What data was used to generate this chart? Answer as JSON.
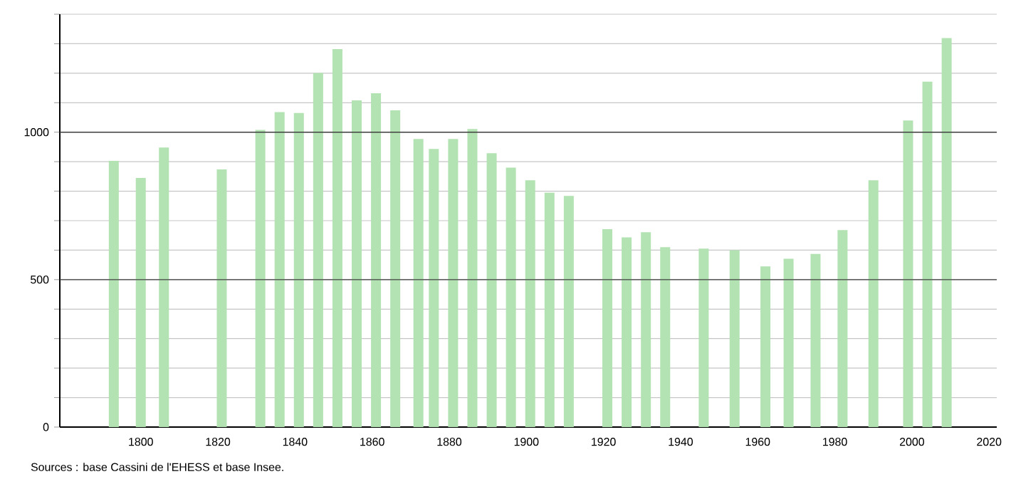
{
  "chart_data": {
    "type": "bar",
    "x": [
      1793,
      1800,
      1806,
      1821,
      1831,
      1836,
      1841,
      1846,
      1851,
      1856,
      1861,
      1866,
      1872,
      1876,
      1881,
      1886,
      1891,
      1896,
      1901,
      1906,
      1911,
      1921,
      1926,
      1931,
      1936,
      1946,
      1954,
      1962,
      1968,
      1975,
      1982,
      1990,
      1999,
      2004,
      2009
    ],
    "values": [
      903,
      845,
      948,
      874,
      1008,
      1068,
      1065,
      1201,
      1282,
      1108,
      1132,
      1074,
      977,
      943,
      977,
      1011,
      929,
      880,
      837,
      795,
      784,
      671,
      643,
      661,
      610,
      605,
      600,
      545,
      571,
      587,
      668,
      837,
      1040,
      1171,
      1319
    ],
    "color": "#b3e2b3",
    "xlim": [
      1779,
      2022
    ],
    "xticks": [
      1800,
      1820,
      1840,
      1860,
      1880,
      1900,
      1920,
      1940,
      1960,
      1980,
      2000,
      2020
    ],
    "ylim": [
      0,
      1400
    ],
    "yticks": [
      0,
      {
        "value": 100,
        "label": null
      },
      {
        "value": 200,
        "label": null
      },
      {
        "value": 300,
        "label": null
      },
      {
        "value": 400,
        "label": null
      },
      500,
      {
        "value": 600,
        "label": null
      },
      {
        "value": 700,
        "label": null
      },
      {
        "value": 800,
        "label": null
      },
      {
        "value": 900,
        "label": null
      },
      1000,
      {
        "value": 1100,
        "label": null
      },
      {
        "value": 1200,
        "label": null
      },
      {
        "value": 1300,
        "label": null
      },
      {
        "value": 1400,
        "label": null
      }
    ],
    "grid": "y",
    "annotations": [
      "Sources : base Cassini de l'EHESS et base Insee."
    ]
  }
}
